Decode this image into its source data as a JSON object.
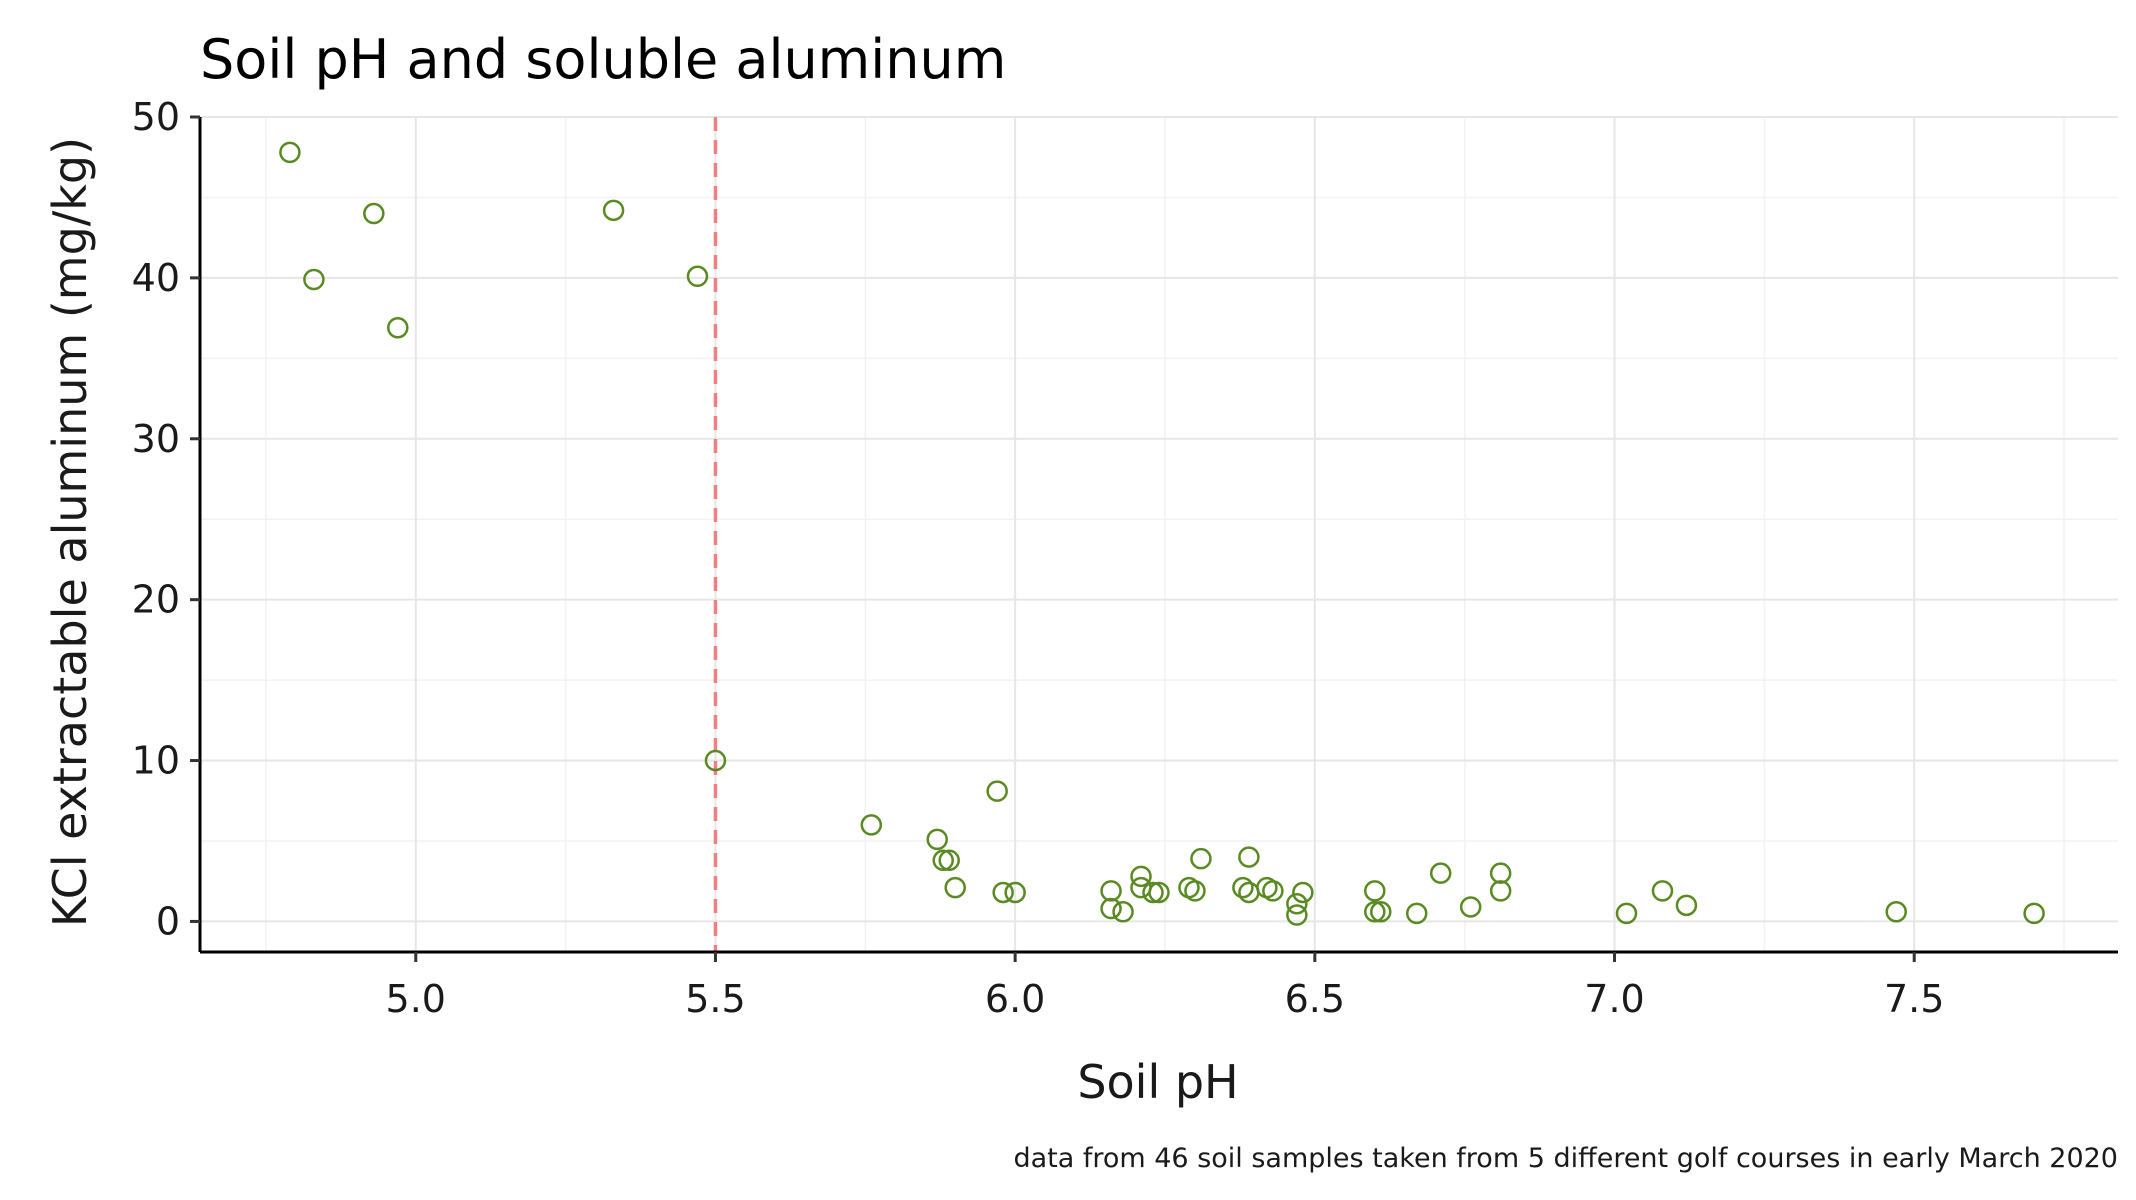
{
  "chart_data": {
    "type": "scatter",
    "title": "Soil pH and soluble aluminum",
    "xlabel": "Soil pH",
    "ylabel": "KCl extractable aluminum (mg/kg)",
    "caption": "data from 46 soil samples taken from 5 different golf courses in early March 2020",
    "xlim": [
      4.64,
      7.84
    ],
    "ylim": [
      -1.9,
      50.0
    ],
    "x_ticks": [
      5.0,
      5.5,
      6.0,
      6.5,
      7.0,
      7.5
    ],
    "x_tick_labels": [
      "5.0",
      "5.5",
      "6.0",
      "6.5",
      "7.0",
      "7.5"
    ],
    "y_ticks": [
      0,
      10,
      20,
      30,
      40,
      50
    ],
    "y_tick_labels": [
      "0",
      "10",
      "20",
      "30",
      "40",
      "50"
    ],
    "grid": true,
    "reference_line": {
      "axis": "x",
      "value": 5.5,
      "style": "dashed"
    },
    "colors": {
      "points": "#5a8a22",
      "reference_line": "#f08080"
    },
    "points": [
      {
        "x": 4.79,
        "y": 47.8
      },
      {
        "x": 4.83,
        "y": 39.9
      },
      {
        "x": 4.93,
        "y": 44.0
      },
      {
        "x": 4.97,
        "y": 36.9
      },
      {
        "x": 5.33,
        "y": 44.2
      },
      {
        "x": 5.47,
        "y": 40.1
      },
      {
        "x": 5.5,
        "y": 10.0
      },
      {
        "x": 5.76,
        "y": 6.0
      },
      {
        "x": 5.87,
        "y": 5.1
      },
      {
        "x": 5.88,
        "y": 3.8
      },
      {
        "x": 5.89,
        "y": 3.8
      },
      {
        "x": 5.9,
        "y": 2.1
      },
      {
        "x": 5.97,
        "y": 8.1
      },
      {
        "x": 5.98,
        "y": 1.8
      },
      {
        "x": 6.0,
        "y": 1.8
      },
      {
        "x": 6.16,
        "y": 1.9
      },
      {
        "x": 6.16,
        "y": 0.8
      },
      {
        "x": 6.18,
        "y": 0.6
      },
      {
        "x": 6.21,
        "y": 2.8
      },
      {
        "x": 6.21,
        "y": 2.1
      },
      {
        "x": 6.23,
        "y": 1.8
      },
      {
        "x": 6.24,
        "y": 1.8
      },
      {
        "x": 6.29,
        "y": 2.1
      },
      {
        "x": 6.3,
        "y": 1.9
      },
      {
        "x": 6.31,
        "y": 3.9
      },
      {
        "x": 6.38,
        "y": 2.1
      },
      {
        "x": 6.39,
        "y": 1.8
      },
      {
        "x": 6.39,
        "y": 4.0
      },
      {
        "x": 6.42,
        "y": 2.1
      },
      {
        "x": 6.43,
        "y": 1.9
      },
      {
        "x": 6.47,
        "y": 1.1
      },
      {
        "x": 6.47,
        "y": 0.4
      },
      {
        "x": 6.48,
        "y": 1.8
      },
      {
        "x": 6.6,
        "y": 0.6
      },
      {
        "x": 6.6,
        "y": 1.9
      },
      {
        "x": 6.61,
        "y": 0.6
      },
      {
        "x": 6.67,
        "y": 0.5
      },
      {
        "x": 6.71,
        "y": 3.0
      },
      {
        "x": 6.76,
        "y": 0.9
      },
      {
        "x": 6.81,
        "y": 1.9
      },
      {
        "x": 6.81,
        "y": 3.0
      },
      {
        "x": 7.02,
        "y": 0.5
      },
      {
        "x": 7.08,
        "y": 1.9
      },
      {
        "x": 7.12,
        "y": 1.0
      },
      {
        "x": 7.47,
        "y": 0.6
      },
      {
        "x": 7.7,
        "y": 0.5
      }
    ]
  }
}
